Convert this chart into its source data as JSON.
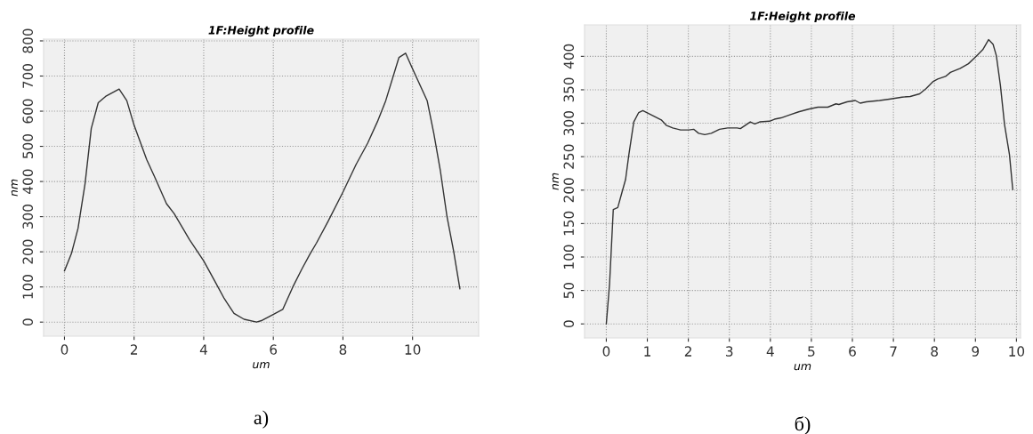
{
  "chart_data": [
    {
      "type": "line",
      "title": "1F:Height profile",
      "xlabel": "um",
      "ylabel": "nm",
      "annotations": [
        "a)"
      ],
      "grid": true,
      "xlim": [
        -0.6,
        11.9
      ],
      "ylim": [
        -40,
        805
      ],
      "xticks": [
        0,
        2,
        4,
        6,
        8,
        10
      ],
      "yticks": [
        0,
        100,
        200,
        300,
        400,
        500,
        600,
        700,
        800
      ],
      "series": [
        {
          "color": "#333333",
          "x": [
            0,
            0.2,
            0.39,
            0.59,
            0.77,
            0.97,
            1.18,
            1.57,
            1.79,
            2,
            2.36,
            2.6,
            2.93,
            3.15,
            3.59,
            4,
            4.35,
            4.59,
            4.87,
            5.16,
            5.52,
            5.68,
            5.96,
            6.27,
            6.56,
            6.82,
            7.05,
            7.24,
            7.57,
            8,
            8.38,
            8.71,
            8.99,
            9.23,
            9.61,
            9.8,
            9.99,
            10.42,
            10.61,
            10.8,
            10.99,
            11.18,
            11.36
          ],
          "values": [
            146,
            195,
            267,
            393,
            551,
            624,
            642,
            663,
            630,
            560,
            463,
            411,
            337,
            309,
            235,
            174,
            111,
            67,
            25,
            8,
            0,
            5,
            20,
            36,
            100,
            151,
            193,
            225,
            286,
            370,
            449,
            509,
            570,
            630,
            753,
            765,
            723,
            630,
            537,
            430,
            300,
            202,
            95
          ]
        }
      ]
    },
    {
      "type": "line",
      "title": "1F:Height profile",
      "xlabel": "um",
      "ylabel": "nm",
      "annotations": [
        "б)"
      ],
      "grid": true,
      "xlim": [
        -0.53,
        10.1
      ],
      "ylim": [
        -21,
        447
      ],
      "xticks": [
        0,
        1,
        2,
        3,
        4,
        5,
        6,
        7,
        8,
        9,
        10
      ],
      "yticks": [
        0,
        50,
        100,
        150,
        200,
        250,
        300,
        350,
        400
      ],
      "series": [
        {
          "color": "#333333",
          "x": [
            0,
            0.08,
            0.17,
            0.28,
            0.37,
            0.47,
            0.55,
            0.67,
            0.79,
            0.89,
            1.02,
            1.18,
            1.34,
            1.46,
            1.62,
            1.81,
            2.01,
            2.13,
            2.25,
            2.4,
            2.56,
            2.76,
            2.96,
            3.19,
            3.27,
            3.51,
            3.62,
            3.74,
            3.98,
            4.1,
            4.26,
            4.49,
            4.69,
            4.93,
            5.16,
            5.4,
            5.6,
            5.67,
            5.87,
            6.07,
            6.19,
            6.34,
            6.66,
            6.9,
            7.21,
            7.41,
            7.64,
            7.8,
            7.96,
            8.08,
            8.27,
            8.39,
            8.63,
            8.83,
            9.02,
            9.18,
            9.32,
            9.43,
            9.51,
            9.61,
            9.71,
            9.83,
            9.91
          ],
          "values": [
            0,
            60,
            171,
            174,
            194,
            216,
            253,
            302,
            316,
            319,
            315,
            310,
            305,
            297,
            293,
            290,
            290,
            291,
            285,
            283,
            285,
            291,
            293,
            293,
            292,
            302,
            299,
            302,
            303,
            306,
            308,
            313,
            317,
            321,
            324,
            324,
            329,
            328,
            332,
            334,
            330,
            332,
            334,
            336,
            339,
            340,
            344,
            352,
            362,
            366,
            370,
            376,
            382,
            389,
            400,
            410,
            425,
            418,
            401,
            356,
            298,
            253,
            201
          ]
        }
      ]
    }
  ]
}
